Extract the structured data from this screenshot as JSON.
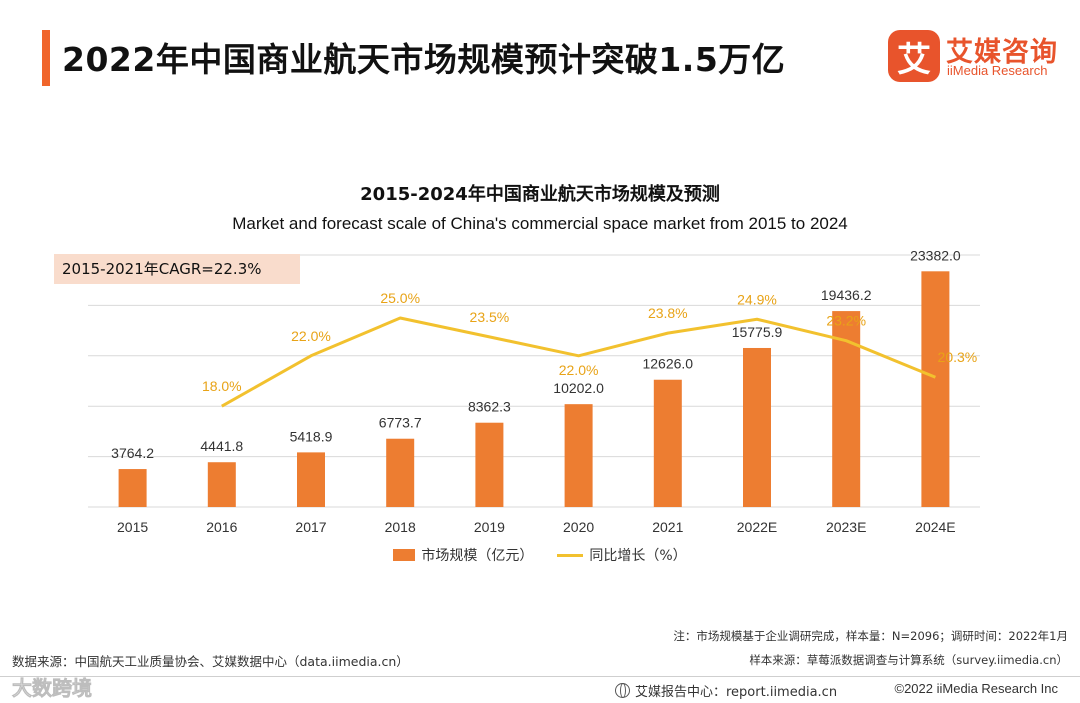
{
  "header": {
    "title": "2022年中国商业航天市场规模预计突破1.5万亿",
    "logo_mark": "艾",
    "logo_cn": "艾媒咨询",
    "logo_en": "iiMedia Research"
  },
  "chart_data": {
    "type": "bar",
    "title": "2015-2024年中国商业航天市场规模及预测",
    "subtitle": "Market and forecast scale of China's commercial space market from 2015 to 2024",
    "annotation": "2015-2021年CAGR=22.3%",
    "categories": [
      "2015",
      "2016",
      "2017",
      "2018",
      "2019",
      "2020",
      "2021",
      "2022E",
      "2023E",
      "2024E"
    ],
    "series": [
      {
        "name": "市场规模（亿元）",
        "type": "bar",
        "axis": "left",
        "values": [
          3764.2,
          4441.8,
          5418.9,
          6773.7,
          8362.3,
          10202.0,
          12626.0,
          15775.9,
          19436.2,
          23382.0
        ],
        "labels": [
          "3764.2",
          "4441.8",
          "5418.9",
          "6773.7",
          "8362.3",
          "10202.0",
          "12626.0",
          "15775.9",
          "19436.2",
          "23382.0"
        ]
      },
      {
        "name": "同比增长（%）",
        "type": "line",
        "axis": "right",
        "values": [
          null,
          18.0,
          22.0,
          25.0,
          23.5,
          22.0,
          23.8,
          24.9,
          23.2,
          20.3
        ],
        "labels": [
          "",
          "18.0%",
          "22.0%",
          "25.0%",
          "23.5%",
          "22.0%",
          "23.8%",
          "24.9%",
          "23.2%",
          "20.3%"
        ]
      }
    ],
    "ylim": [
      0,
      25000
    ],
    "y2lim": [
      10,
      30
    ],
    "grid": true,
    "legend": "bottom-center",
    "colors": {
      "bar": "#ed7d31",
      "line": "#f2c12e",
      "label": "#333333",
      "line_label": "#e8a317",
      "grid": "#d9d9d9"
    }
  },
  "footer": {
    "note1": "注：市场规模基于企业调研完成，样本量：N=2096；调研时间：2022年1月",
    "note2": "样本来源：草莓派数据调查与计算系统（survey.iimedia.cn）",
    "source": "数据来源：中国航天工业质量协会、艾媒数据中心（data.iimedia.cn）",
    "report": "艾媒报告中心：report.iimedia.cn",
    "copyright": "©2022  iiMedia Research  Inc",
    "watermark": "大数跨境"
  }
}
